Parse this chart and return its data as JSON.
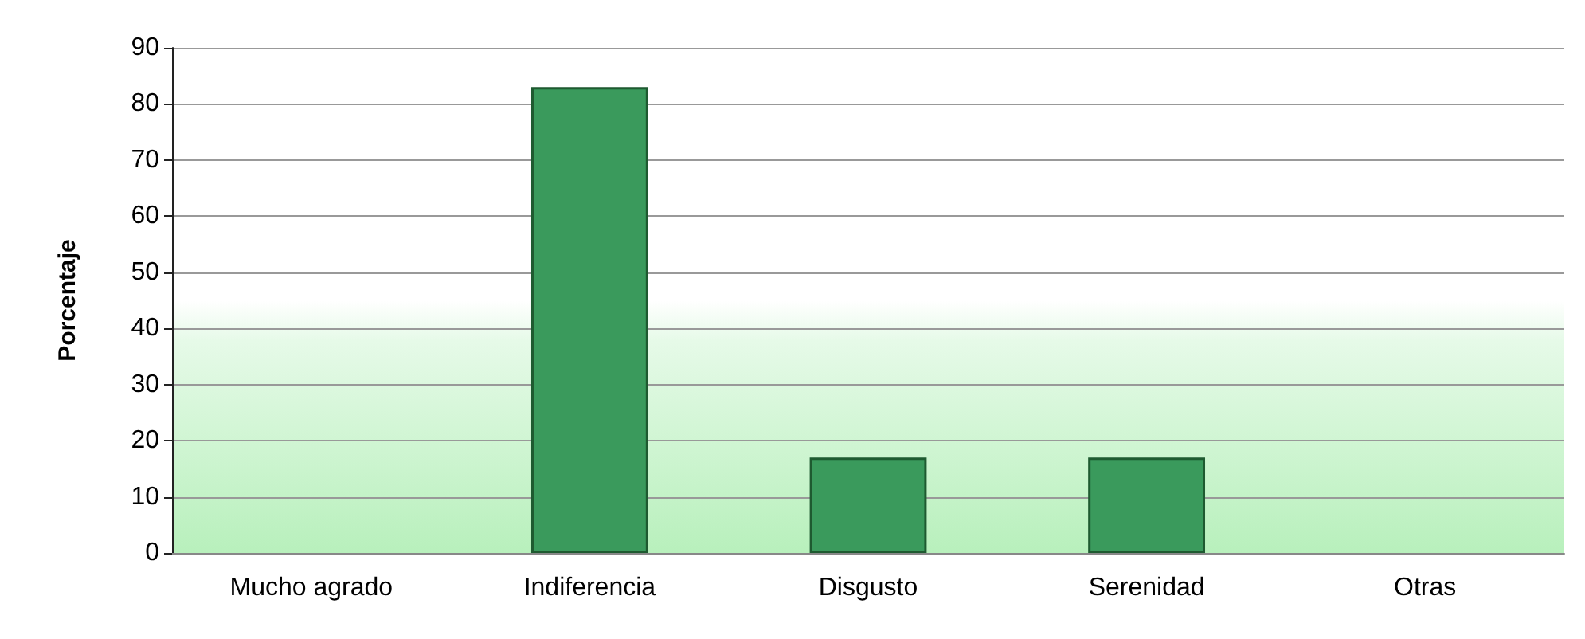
{
  "chart_data": {
    "type": "bar",
    "ylabel": "Porcentaje",
    "categories": [
      "Mucho agrado",
      "Indiferencia",
      "Disgusto",
      "Serenidad",
      "Otras"
    ],
    "values": [
      0,
      83,
      17,
      17,
      0
    ],
    "color": "#3a9a5c",
    "ylim": [
      0,
      90
    ],
    "yticks": [
      0,
      10,
      20,
      30,
      40,
      50,
      60,
      70,
      80,
      90
    ],
    "grid": "y"
  }
}
